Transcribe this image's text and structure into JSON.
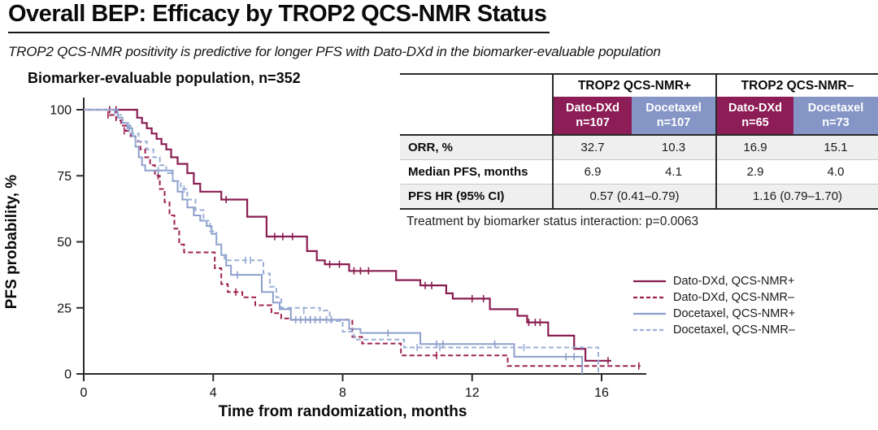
{
  "header": {
    "title": "Overall BEP: Efficacy by TROP2 QCS-NMR Status",
    "subtitle": "TROP2 QCS-NMR positivity is predictive for longer PFS with Dato-DXd in the biomarker-evaluable population"
  },
  "table": {
    "group_headers": [
      "TROP2 QCS-NMR+",
      "TROP2 QCS-NMR–"
    ],
    "columns": [
      {
        "drug": "Dato-DXd",
        "n": "n=107",
        "color": "#8C1D56"
      },
      {
        "drug": "Docetaxel",
        "n": "n=107",
        "color": "#8495C6"
      },
      {
        "drug": "Dato-DXd",
        "n": "n=65",
        "color": "#8C1D56"
      },
      {
        "drug": "Docetaxel",
        "n": "n=73",
        "color": "#8495C6"
      }
    ],
    "rows": [
      {
        "label": "ORR, %",
        "values": [
          "32.7",
          "10.3",
          "16.9",
          "15.1"
        ]
      },
      {
        "label": "Median PFS, months",
        "values": [
          "6.9",
          "4.1",
          "2.9",
          "4.0"
        ]
      },
      {
        "label": "PFS HR (95% CI)",
        "values": [
          "0.57 (0.41–0.79)",
          "1.16 (0.79–1.70)"
        ]
      }
    ],
    "footnote": "Treatment by biomarker status interaction: p=0.0063"
  },
  "chart_data": {
    "type": "line",
    "subtype": "kaplan-meier-step",
    "title": "Biomarker-evaluable population, n=352",
    "xlabel": "Time from randomization, months",
    "ylabel": "PFS probability, %",
    "xlim": [
      0,
      17.5
    ],
    "ylim": [
      0,
      100
    ],
    "xticks": [
      0,
      4,
      8,
      12,
      16
    ],
    "yticks": [
      0,
      25,
      50,
      75,
      100
    ],
    "grid": false,
    "legend_position": "right-bottom",
    "series": [
      {
        "name": "Dato-DXd, QCS-NMR+",
        "color": "#8A1D52",
        "dash": "solid",
        "width": 2.2,
        "points": [
          [
            0,
            100
          ],
          [
            1.65,
            97
          ],
          [
            1.8,
            95
          ],
          [
            1.95,
            93
          ],
          [
            2.1,
            91
          ],
          [
            2.25,
            89
          ],
          [
            2.4,
            87
          ],
          [
            2.55,
            85
          ],
          [
            2.7,
            82
          ],
          [
            2.9,
            79.5
          ],
          [
            3.2,
            76
          ],
          [
            3.4,
            72
          ],
          [
            3.6,
            69
          ],
          [
            4.25,
            66
          ],
          [
            5.05,
            59.5
          ],
          [
            5.65,
            52
          ],
          [
            6.9,
            46.5
          ],
          [
            7.2,
            43
          ],
          [
            7.45,
            41.5
          ],
          [
            8.2,
            39
          ],
          [
            9.65,
            35.5
          ],
          [
            10.4,
            33.5
          ],
          [
            11.2,
            30.5
          ],
          [
            11.4,
            28.5
          ],
          [
            12.55,
            24.5
          ],
          [
            13.4,
            22
          ],
          [
            13.7,
            19.5
          ],
          [
            14.35,
            14.5
          ],
          [
            15.15,
            9.5
          ],
          [
            15.5,
            5
          ],
          [
            16.3,
            5
          ]
        ],
        "censors": [
          [
            0.8,
            100
          ],
          [
            1.0,
            100
          ],
          [
            4.4,
            66
          ],
          [
            5.9,
            52
          ],
          [
            6.15,
            52
          ],
          [
            6.45,
            52
          ],
          [
            7.6,
            41.5
          ],
          [
            7.9,
            41.5
          ],
          [
            8.35,
            39
          ],
          [
            8.55,
            39
          ],
          [
            8.8,
            39
          ],
          [
            10.55,
            33.5
          ],
          [
            10.75,
            33.5
          ],
          [
            12.0,
            28.5
          ],
          [
            12.35,
            28.5
          ],
          [
            13.75,
            19.5
          ],
          [
            13.95,
            19.5
          ],
          [
            14.1,
            19.5
          ],
          [
            16.2,
            5
          ]
        ]
      },
      {
        "name": "Dato-DXd, QCS-NMR–",
        "color": "#9E2150",
        "dash": "dashed",
        "width": 2,
        "points": [
          [
            0,
            100
          ],
          [
            0.8,
            98
          ],
          [
            1.0,
            96
          ],
          [
            1.15,
            94
          ],
          [
            1.3,
            92
          ],
          [
            1.45,
            90
          ],
          [
            1.6,
            88
          ],
          [
            1.75,
            85
          ],
          [
            1.9,
            82
          ],
          [
            2.05,
            79
          ],
          [
            2.2,
            75
          ],
          [
            2.35,
            70
          ],
          [
            2.5,
            65
          ],
          [
            2.65,
            60
          ],
          [
            2.8,
            55
          ],
          [
            2.95,
            49
          ],
          [
            3.1,
            46
          ],
          [
            4.05,
            40
          ],
          [
            4.25,
            34
          ],
          [
            4.45,
            31
          ],
          [
            4.9,
            29
          ],
          [
            5.3,
            26
          ],
          [
            5.8,
            23
          ],
          [
            6.1,
            21
          ],
          [
            6.4,
            20.5
          ],
          [
            8.3,
            14
          ],
          [
            8.6,
            11.5
          ],
          [
            9.8,
            7
          ],
          [
            13.1,
            3
          ],
          [
            17.2,
            3
          ]
        ],
        "censors": [
          [
            0.75,
            98
          ],
          [
            1.25,
            92
          ],
          [
            2.3,
            75
          ],
          [
            4.7,
            31
          ],
          [
            7.0,
            20.5
          ],
          [
            10.9,
            7
          ],
          [
            17.15,
            3
          ]
        ]
      },
      {
        "name": "Docetaxel, QCS-NMR+",
        "color": "#8C9FCB",
        "dash": "solid",
        "width": 2,
        "points": [
          [
            0,
            100
          ],
          [
            1.05,
            97
          ],
          [
            1.2,
            95
          ],
          [
            1.35,
            93
          ],
          [
            1.5,
            90
          ],
          [
            1.6,
            86
          ],
          [
            1.7,
            82
          ],
          [
            1.8,
            79
          ],
          [
            1.9,
            77
          ],
          [
            2.75,
            73
          ],
          [
            2.9,
            69
          ],
          [
            3.05,
            66
          ],
          [
            3.2,
            63
          ],
          [
            3.4,
            60
          ],
          [
            3.6,
            58
          ],
          [
            3.8,
            56
          ],
          [
            3.95,
            53
          ],
          [
            4.1,
            49
          ],
          [
            4.25,
            45
          ],
          [
            4.4,
            41
          ],
          [
            4.55,
            37.5
          ],
          [
            5.5,
            31
          ],
          [
            5.85,
            27
          ],
          [
            6.05,
            24.5
          ],
          [
            6.4,
            20.5
          ],
          [
            8.2,
            17
          ],
          [
            8.55,
            15.5
          ],
          [
            10.4,
            11.3
          ],
          [
            13.3,
            6.5
          ],
          [
            15.4,
            6.5
          ],
          [
            15.4,
            0
          ]
        ],
        "censors": [
          [
            1.4,
            93
          ],
          [
            2.3,
            77
          ],
          [
            4.75,
            37.5
          ],
          [
            6.55,
            20.5
          ],
          [
            6.7,
            20.5
          ],
          [
            6.85,
            20.5
          ],
          [
            7.0,
            20.5
          ],
          [
            7.15,
            20.5
          ],
          [
            7.3,
            20.5
          ],
          [
            7.5,
            20.5
          ],
          [
            7.65,
            20.5
          ],
          [
            9.4,
            15.5
          ],
          [
            10.9,
            11.3
          ],
          [
            11.1,
            11.3
          ],
          [
            12.7,
            11.3
          ],
          [
            14.9,
            6.5
          ],
          [
            15.15,
            6.5
          ]
        ]
      },
      {
        "name": "Docetaxel, QCS-NMR–",
        "color": "#9AAFD6",
        "dash": "dashed",
        "width": 2,
        "points": [
          [
            0,
            100
          ],
          [
            0.95,
            98
          ],
          [
            1.2,
            95
          ],
          [
            1.45,
            91
          ],
          [
            1.7,
            88
          ],
          [
            1.95,
            85
          ],
          [
            2.15,
            82
          ],
          [
            2.35,
            79
          ],
          [
            2.55,
            76
          ],
          [
            2.75,
            73
          ],
          [
            3.0,
            70
          ],
          [
            3.2,
            66
          ],
          [
            3.45,
            62
          ],
          [
            3.7,
            58
          ],
          [
            3.9,
            54
          ],
          [
            4.1,
            49
          ],
          [
            4.25,
            45
          ],
          [
            4.35,
            43
          ],
          [
            5.55,
            38
          ],
          [
            5.75,
            33
          ],
          [
            5.95,
            29
          ],
          [
            6.1,
            25
          ],
          [
            7.3,
            24
          ],
          [
            7.6,
            20
          ],
          [
            8.0,
            16
          ],
          [
            8.35,
            13
          ],
          [
            9.9,
            10
          ],
          [
            15.9,
            10
          ],
          [
            15.9,
            0
          ]
        ],
        "censors": [
          [
            1.6,
            88
          ],
          [
            3.1,
            70
          ],
          [
            5.0,
            43
          ],
          [
            5.15,
            43
          ],
          [
            6.8,
            24
          ],
          [
            10.3,
            10
          ],
          [
            11.0,
            10
          ],
          [
            13.6,
            10
          ]
        ]
      }
    ]
  }
}
